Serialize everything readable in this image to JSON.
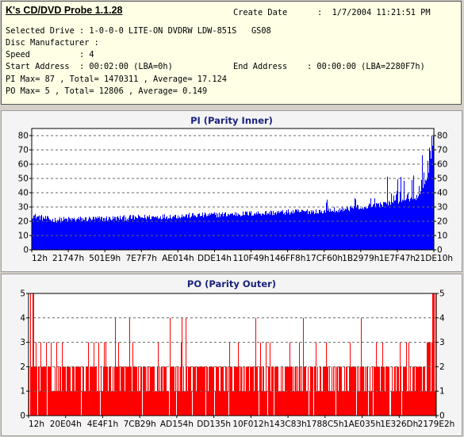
{
  "header": {
    "title": "K's CD/DVD Probe 1.1.28",
    "create_date_label": "Create Date",
    "create_date_value": ":  1/7/2004 11:21:51 PM",
    "selected_drive": "Selected Drive : 1-0-0-0 LITE-ON DVDRW LDW-851S   GS08",
    "disc_manufacturer": "Disc Manufacturer :",
    "speed": "Speed          : 4",
    "start_address": "Start Address  : 00:02:00 (LBA=0h)",
    "end_address": "End Address    : 00:00:00 (LBA=2280F7h)",
    "pi_summary": "PI Max= 87 , Total= 1470311 , Average= 17.124",
    "po_summary": "PO Max= 5 , Total= 12806 , Average= 0.149"
  },
  "chart_data": [
    {
      "type": "bar",
      "title": "PI (Parity Inner)",
      "color": "#0000ff",
      "ylim": [
        0,
        85
      ],
      "yticks": [
        0,
        10,
        20,
        30,
        40,
        50,
        60,
        70,
        80
      ],
      "xticks": [
        "12h",
        "21747h",
        "501E9h",
        "7E7F7h",
        "AE014h",
        "DDE14h",
        "110F49h",
        "146FF8h",
        "17CF60h",
        "1B2979h",
        "1E7F47h",
        "21DE10h"
      ],
      "grid": true,
      "series_profile": {
        "x": [
          0,
          0.05,
          0.2,
          0.4,
          0.6,
          0.7,
          0.75,
          0.8,
          0.85,
          0.9,
          0.93,
          0.96,
          0.975,
          0.99,
          1.0
        ],
        "typical_pi": [
          24,
          21,
          22,
          24,
          26,
          27,
          28,
          29,
          31,
          33,
          35,
          37,
          42,
          58,
          62
        ],
        "max": 87
      }
    },
    {
      "type": "bar",
      "title": "PO (Parity Outer)",
      "color": "#ff0000",
      "ylim": [
        0,
        5
      ],
      "yticks": [
        0,
        1,
        2,
        3,
        4,
        5
      ],
      "xticks": [
        "12h",
        "20E04h",
        "4E4F1h",
        "7CB29h",
        "AD154h",
        "DD135h",
        "10F012h",
        "143C83h",
        "1788C5h",
        "1AE035h",
        "1E326Dh",
        "2179E2h"
      ],
      "grid": true,
      "series_profile": {
        "typical_po": 2,
        "max": 5
      }
    }
  ]
}
